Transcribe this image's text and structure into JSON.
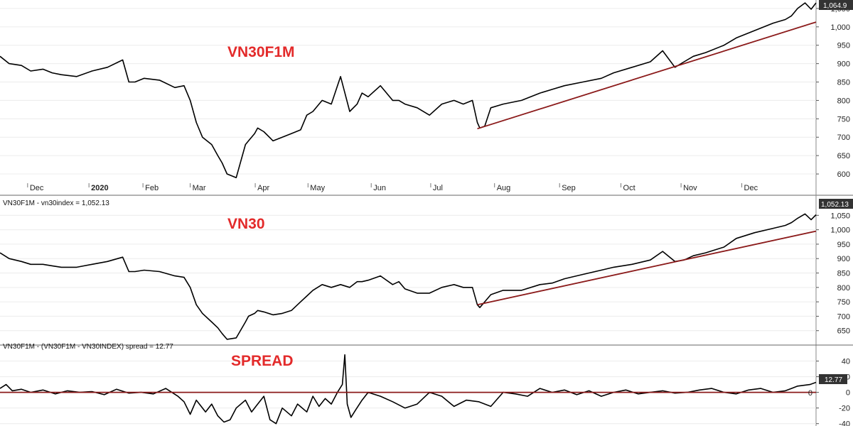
{
  "chart_data": [
    {
      "type": "line",
      "title": "VN30F1M",
      "header": "",
      "yticks": [
        600,
        650,
        700,
        750,
        800,
        850,
        900,
        950,
        1000,
        1050
      ],
      "ytick_labels": [
        "600",
        "650",
        "700",
        "750",
        "800",
        "850",
        "900",
        "950",
        "1,000",
        "1,050"
      ],
      "ylim": [
        575,
        1073
      ],
      "xlim": [
        0,
        13.3
      ],
      "last_value": "1,064.9",
      "xticks": [
        {
          "label": "Dec",
          "x": 0.45
        },
        {
          "label": "2020",
          "x": 1.45,
          "bold": true
        },
        {
          "label": "Feb",
          "x": 2.33
        },
        {
          "label": "Mar",
          "x": 3.1
        },
        {
          "label": "Apr",
          "x": 4.16
        },
        {
          "label": "May",
          "x": 5.02
        },
        {
          "label": "Jun",
          "x": 6.05
        },
        {
          "label": "Jul",
          "x": 7.02
        },
        {
          "label": "Aug",
          "x": 8.06
        },
        {
          "label": "Sep",
          "x": 9.12
        },
        {
          "label": "Oct",
          "x": 10.12
        },
        {
          "label": "Nov",
          "x": 11.1
        },
        {
          "label": "Dec",
          "x": 12.09
        }
      ],
      "series": [
        {
          "color": "#000000",
          "x": [
            0.0,
            0.15,
            0.35,
            0.5,
            0.7,
            0.85,
            1.0,
            1.25,
            1.5,
            1.75,
            2.0,
            2.1,
            2.2,
            2.35,
            2.6,
            2.85,
            3.0,
            3.1,
            3.2,
            3.3,
            3.45,
            3.55,
            3.62,
            3.7,
            3.85,
            4.0,
            4.05,
            4.15,
            4.2,
            4.3,
            4.45,
            4.6,
            4.75,
            4.9,
            5.0,
            5.1,
            5.25,
            5.4,
            5.55,
            5.7,
            5.82,
            5.9,
            6.0,
            6.2,
            6.4,
            6.5,
            6.6,
            6.8,
            7.0,
            7.2,
            7.4,
            7.55,
            7.7,
            7.78,
            7.82,
            7.9,
            8.0,
            8.2,
            8.5,
            8.8,
            9.0,
            9.2,
            9.5,
            9.8,
            10.0,
            10.3,
            10.6,
            10.8,
            11.0,
            11.15,
            11.3,
            11.5,
            11.8,
            12.0,
            12.3,
            12.6,
            12.8,
            12.9,
            13.0,
            13.12,
            13.22,
            13.3
          ],
          "y": [
            920,
            900,
            895,
            880,
            885,
            875,
            870,
            865,
            880,
            890,
            910,
            850,
            850,
            860,
            855,
            835,
            840,
            800,
            740,
            700,
            680,
            650,
            630,
            600,
            590,
            680,
            690,
            710,
            725,
            715,
            690,
            700,
            710,
            720,
            760,
            770,
            800,
            790,
            865,
            770,
            790,
            820,
            810,
            840,
            800,
            800,
            790,
            780,
            760,
            790,
            800,
            790,
            800,
            740,
            725,
            730,
            780,
            790,
            800,
            820,
            830,
            840,
            850,
            860,
            875,
            890,
            905,
            935,
            890,
            905,
            920,
            930,
            950,
            970,
            990,
            1010,
            1020,
            1030,
            1050,
            1065,
            1048,
            1065
          ]
        },
        {
          "color": "#8b1a1a",
          "x": [
            7.78,
            13.3
          ],
          "y": [
            723,
            1013
          ]
        }
      ]
    },
    {
      "type": "line",
      "title": "VN30",
      "header": "VN30F1M - vn30index = 1,052.13",
      "yticks": [
        650,
        700,
        750,
        800,
        850,
        900,
        950,
        1000,
        1050
      ],
      "ytick_labels": [
        "650",
        "700",
        "750",
        "800",
        "850",
        "900",
        "950",
        "1,000",
        "1,050"
      ],
      "ylim": [
        605,
        1068
      ],
      "xlim": [
        0,
        13.3
      ],
      "last_value": "1,052.13",
      "series": [
        {
          "color": "#000000",
          "x": [
            0.0,
            0.15,
            0.35,
            0.5,
            0.7,
            0.85,
            1.0,
            1.25,
            1.5,
            1.75,
            2.0,
            2.1,
            2.2,
            2.35,
            2.6,
            2.85,
            3.0,
            3.1,
            3.2,
            3.3,
            3.45,
            3.55,
            3.62,
            3.7,
            3.85,
            4.0,
            4.05,
            4.15,
            4.2,
            4.3,
            4.45,
            4.6,
            4.75,
            4.9,
            5.0,
            5.1,
            5.25,
            5.4,
            5.55,
            5.7,
            5.82,
            5.9,
            6.0,
            6.2,
            6.4,
            6.5,
            6.6,
            6.8,
            7.0,
            7.2,
            7.4,
            7.55,
            7.7,
            7.78,
            7.82,
            7.9,
            8.0,
            8.2,
            8.5,
            8.8,
            9.0,
            9.2,
            9.5,
            9.8,
            10.0,
            10.3,
            10.6,
            10.8,
            11.0,
            11.15,
            11.3,
            11.5,
            11.8,
            12.0,
            12.3,
            12.6,
            12.8,
            12.9,
            13.0,
            13.12,
            13.22,
            13.3
          ],
          "y": [
            920,
            900,
            890,
            880,
            880,
            875,
            870,
            870,
            880,
            890,
            905,
            855,
            855,
            860,
            855,
            840,
            835,
            800,
            740,
            710,
            680,
            660,
            640,
            620,
            625,
            680,
            700,
            710,
            720,
            715,
            705,
            710,
            720,
            750,
            770,
            790,
            810,
            800,
            810,
            800,
            820,
            820,
            825,
            840,
            810,
            820,
            795,
            780,
            780,
            800,
            810,
            800,
            800,
            740,
            730,
            750,
            775,
            790,
            790,
            810,
            815,
            830,
            845,
            860,
            870,
            880,
            895,
            925,
            890,
            895,
            910,
            920,
            940,
            970,
            990,
            1005,
            1015,
            1025,
            1040,
            1055,
            1035,
            1052
          ]
        },
        {
          "color": "#8b1a1a",
          "x": [
            7.78,
            13.3
          ],
          "y": [
            740,
            995
          ]
        }
      ]
    },
    {
      "type": "line",
      "title": "SPREAD",
      "header": "VN30F1M - (VN30F1M - VN30INDEX) spread = 12.77",
      "yticks": [
        -40,
        -20,
        0,
        20,
        40
      ],
      "ytick_labels": [
        "-40",
        "-20",
        "0",
        "20",
        "40"
      ],
      "ylim": [
        -43,
        55
      ],
      "xlim": [
        0,
        13.3
      ],
      "last_value": "12.77",
      "zero_label": "0",
      "series": [
        {
          "color": "#000000",
          "x": [
            0.0,
            0.1,
            0.2,
            0.35,
            0.5,
            0.7,
            0.9,
            1.1,
            1.3,
            1.5,
            1.7,
            1.9,
            2.1,
            2.3,
            2.5,
            2.7,
            2.9,
            3.0,
            3.1,
            3.2,
            3.35,
            3.45,
            3.55,
            3.65,
            3.75,
            3.85,
            4.0,
            4.1,
            4.2,
            4.3,
            4.4,
            4.5,
            4.6,
            4.75,
            4.85,
            5.0,
            5.1,
            5.2,
            5.3,
            5.4,
            5.5,
            5.58,
            5.62,
            5.66,
            5.72,
            5.8,
            5.9,
            6.0,
            6.2,
            6.4,
            6.6,
            6.8,
            7.0,
            7.2,
            7.4,
            7.6,
            7.8,
            8.0,
            8.2,
            8.4,
            8.6,
            8.8,
            9.0,
            9.2,
            9.4,
            9.6,
            9.8,
            10.0,
            10.2,
            10.4,
            10.6,
            10.8,
            11.0,
            11.2,
            11.4,
            11.6,
            11.8,
            12.0,
            12.2,
            12.4,
            12.6,
            12.8,
            12.9,
            13.0,
            13.2,
            13.3
          ],
          "y": [
            5,
            10,
            2,
            4,
            0,
            3,
            -2,
            2,
            0,
            1,
            -3,
            4,
            -1,
            0,
            -2,
            5,
            -5,
            -12,
            -28,
            -10,
            -25,
            -15,
            -30,
            -38,
            -35,
            -20,
            -10,
            -25,
            -15,
            -5,
            -35,
            -40,
            -20,
            -30,
            -15,
            -25,
            -5,
            -18,
            -8,
            -15,
            0,
            10,
            48,
            -15,
            -32,
            -22,
            -10,
            0,
            -5,
            -12,
            -20,
            -15,
            0,
            -5,
            -18,
            -10,
            -12,
            -18,
            0,
            -2,
            -5,
            5,
            0,
            3,
            -3,
            2,
            -5,
            0,
            3,
            -2,
            0,
            2,
            -1,
            0,
            3,
            5,
            0,
            -2,
            3,
            5,
            0,
            2,
            5,
            8,
            10,
            12.77
          ]
        },
        {
          "color": "#8b1a1a",
          "x": [
            0.0,
            13.3
          ],
          "y": [
            0,
            0
          ]
        }
      ]
    }
  ]
}
